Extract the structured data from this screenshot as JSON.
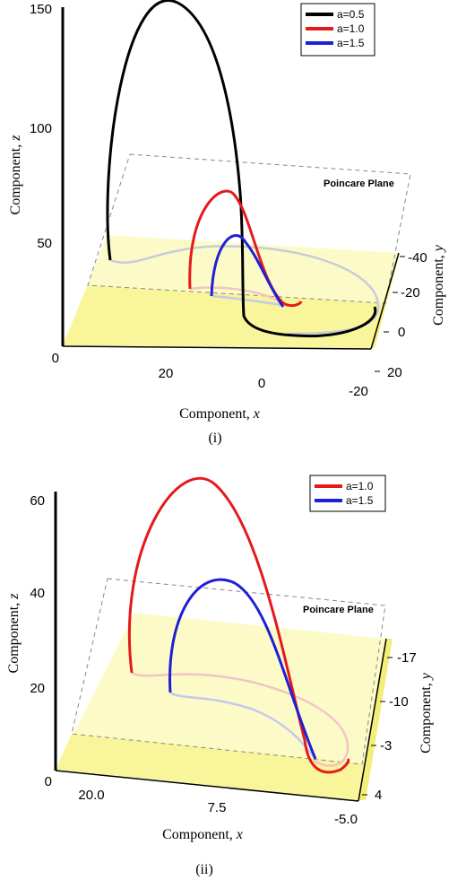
{
  "chart_data": [
    {
      "type": "line3d",
      "panel_caption": "(i)",
      "xlabel": "Component, ",
      "xlabel_var": "x",
      "ylabel": "Component, ",
      "ylabel_var": "y",
      "zlabel": "Component, ",
      "zlabel_var": "z",
      "plane_label": "Poincare Plane",
      "x_ticks": [
        "20",
        "0",
        "-20"
      ],
      "y_ticks": [
        "-40",
        "-20",
        "0",
        "20"
      ],
      "z_ticks": [
        "150",
        "100",
        "50",
        "0"
      ],
      "zlim": [
        0,
        150
      ],
      "legend": [
        {
          "label": "a=0.5",
          "color": "#000000"
        },
        {
          "label": "a=1.0",
          "color": "#e41a1c"
        },
        {
          "label": "a=1.5",
          "color": "#1f1fd6"
        }
      ],
      "series": [
        {
          "name": "a=0.5",
          "color": "#000000",
          "z_peak": 150
        },
        {
          "name": "a=1.0",
          "color": "#e41a1c",
          "z_peak": 70
        },
        {
          "name": "a=1.5",
          "color": "#1f1fd6",
          "z_peak": 50
        }
      ]
    },
    {
      "type": "line3d",
      "panel_caption": "(ii)",
      "xlabel": "Component, ",
      "xlabel_var": "x",
      "ylabel": "Component, ",
      "ylabel_var": "y",
      "zlabel": "Component, ",
      "zlabel_var": "z",
      "plane_label": "Poincare Plane",
      "x_ticks": [
        "20.0",
        "7.5",
        "-5.0"
      ],
      "y_ticks": [
        "-17",
        "-10",
        "-3",
        "4"
      ],
      "z_ticks": [
        "60",
        "40",
        "20",
        "0"
      ],
      "zlim": [
        0,
        60
      ],
      "legend": [
        {
          "label": "a=1.0",
          "color": "#e41a1c"
        },
        {
          "label": "a=1.5",
          "color": "#1f1fd6"
        }
      ],
      "series": [
        {
          "name": "a=1.0",
          "color": "#e41a1c",
          "z_peak": 62
        },
        {
          "name": "a=1.5",
          "color": "#1f1fd6",
          "z_peak": 43
        }
      ]
    }
  ]
}
